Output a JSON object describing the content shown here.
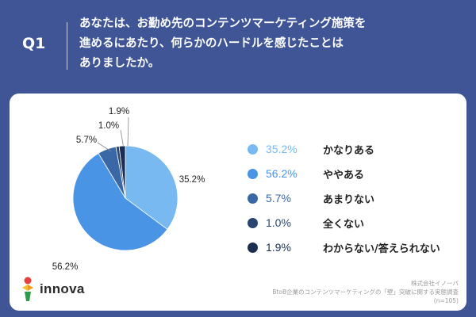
{
  "header": {
    "qnum": "Q1",
    "question_lines": [
      "あなたは、お勤め先のコンテンツマーケティング施策を",
      "進めるにあたり、何らかのハードルを感じたことは",
      "ありましたか。"
    ]
  },
  "chart_data": {
    "type": "pie",
    "title": "",
    "slices": [
      {
        "label": "かなりある",
        "value": 35.2,
        "value_label": "35.2%",
        "color": "#79b9f2"
      },
      {
        "label": "ややある",
        "value": 56.2,
        "value_label": "56.2%",
        "color": "#4a94e6"
      },
      {
        "label": "あまりない",
        "value": 5.7,
        "value_label": "5.7%",
        "color": "#3a67a6"
      },
      {
        "label": "全くない",
        "value": 1.0,
        "value_label": "1.0%",
        "color": "#27456f"
      },
      {
        "label": "わからない/答えられない",
        "value": 1.9,
        "value_label": "1.9%",
        "color": "#1b2f52"
      }
    ],
    "legend_placement": "right"
  },
  "logo": {
    "text": "innova"
  },
  "source": {
    "lines": [
      "株式会社イノーバ",
      "BtoB企業のコンテンツマーケティングの「壁」突破に関する実態調査",
      "(n=105)"
    ]
  }
}
